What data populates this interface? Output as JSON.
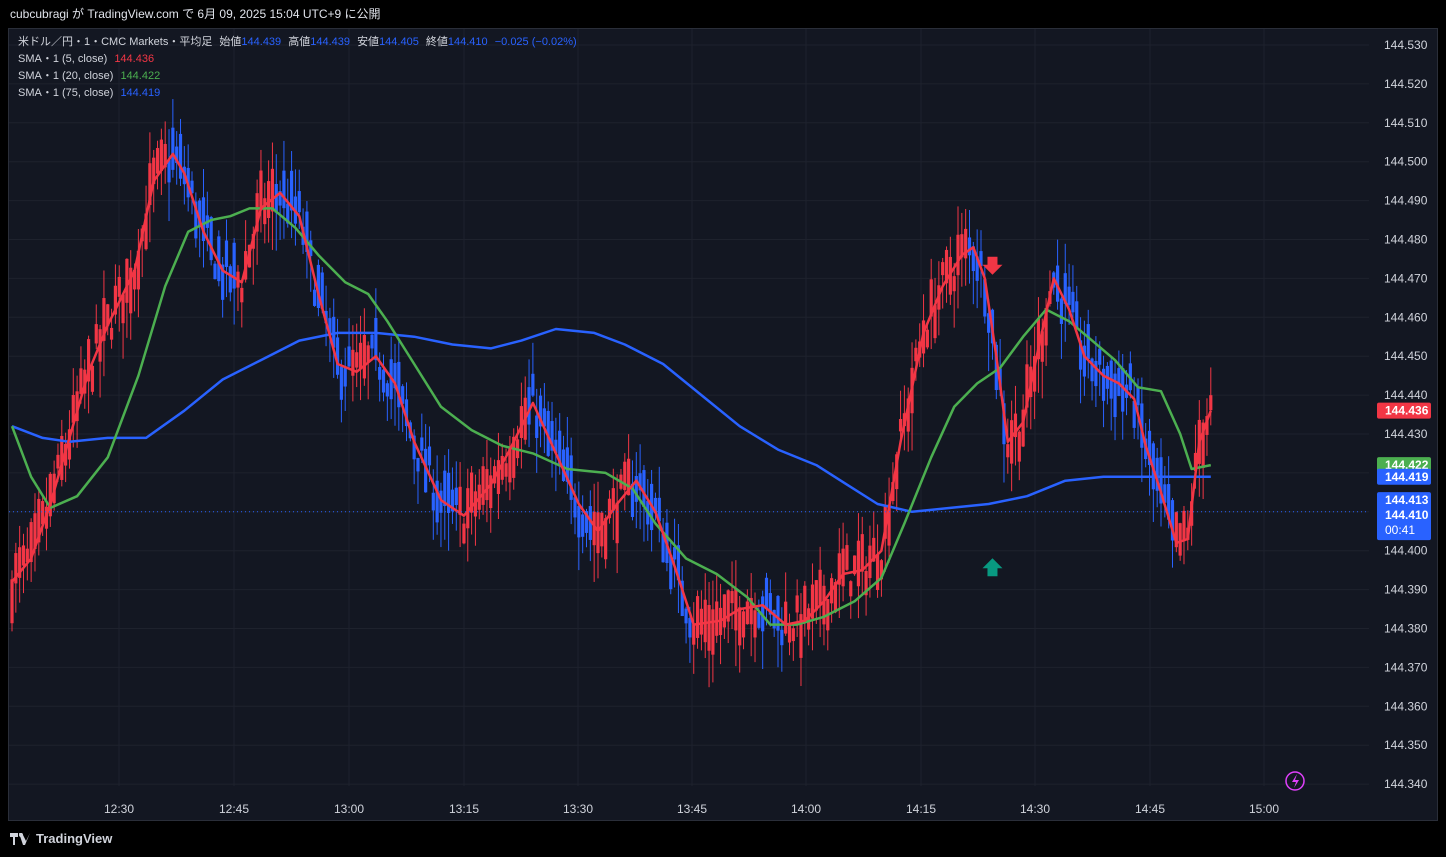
{
  "header": {
    "publish_line": "cubcubragi が TradingView.com で 6月 09, 2025 15:04 UTC+9 に公開"
  },
  "legend": {
    "symbol": "米ドル／円・1・CMC Markets・平均足",
    "open_label": "始値",
    "open": "144.439",
    "high_label": "高値",
    "high": "144.439",
    "low_label": "安値",
    "low": "144.405",
    "close_label": "終値",
    "close": "144.410",
    "change": "−0.025 (−0.02%)",
    "sma5": {
      "label": "SMA・1 (5, close)",
      "value": "144.436"
    },
    "sma20": {
      "label": "SMA・1 (20, close)",
      "value": "144.422"
    },
    "sma75": {
      "label": "SMA・1 (75, close)",
      "value": "144.419"
    }
  },
  "price_badges": {
    "sma5": "144.436",
    "sma20": "144.422",
    "sma75": "144.419",
    "last_high": "144.413",
    "last_close": "144.410",
    "countdown": "00:41"
  },
  "colors": {
    "background": "#131722",
    "up": "#f23645",
    "down": "#2962ff",
    "sma5": "#f23645",
    "sma20": "#4caf50",
    "sma75": "#2962ff",
    "up_arrow": "#089981",
    "down_arrow": "#f23645",
    "lightning": "#e040fb"
  },
  "footer": {
    "brand": "TradingView"
  },
  "chart_data": {
    "type": "candlestick",
    "subtype": "heikin-ashi",
    "interval": "1m",
    "ylim": [
      144.335,
      144.535
    ],
    "ytick_labels": [
      "144.530",
      "144.520",
      "144.510",
      "144.500",
      "144.490",
      "144.480",
      "144.470",
      "144.460",
      "144.450",
      "144.440",
      "144.430",
      "144.420",
      "144.410",
      "144.400",
      "144.390",
      "144.380",
      "144.370",
      "144.360",
      "144.350",
      "144.340"
    ],
    "xtick_labels": [
      "12:30",
      "12:45",
      "13:00",
      "13:15",
      "13:30",
      "13:45",
      "14:00",
      "14:15",
      "14:30",
      "14:45",
      "15:00"
    ],
    "grid": true,
    "sma5": [
      [
        0,
        144.392
      ],
      [
        5,
        144.398
      ],
      [
        10,
        144.412
      ],
      [
        20,
        144.446
      ],
      [
        25,
        144.458
      ],
      [
        32,
        144.472
      ],
      [
        37,
        144.495
      ],
      [
        42,
        144.502
      ],
      [
        45,
        144.497
      ],
      [
        50,
        144.482
      ],
      [
        55,
        144.472
      ],
      [
        60,
        144.469
      ],
      [
        65,
        144.488
      ],
      [
        70,
        144.492
      ],
      [
        75,
        144.486
      ],
      [
        80,
        144.466
      ],
      [
        85,
        144.448
      ],
      [
        90,
        144.446
      ],
      [
        95,
        144.45
      ],
      [
        100,
        144.443
      ],
      [
        105,
        144.428
      ],
      [
        112,
        144.413
      ],
      [
        118,
        144.409
      ],
      [
        125,
        144.417
      ],
      [
        130,
        144.426
      ],
      [
        136,
        144.438
      ],
      [
        142,
        144.425
      ],
      [
        148,
        144.412
      ],
      [
        153,
        144.405
      ],
      [
        158,
        144.412
      ],
      [
        163,
        144.418
      ],
      [
        168,
        144.41
      ],
      [
        173,
        144.396
      ],
      [
        178,
        144.381
      ],
      [
        185,
        144.382
      ],
      [
        190,
        144.385
      ],
      [
        196,
        144.386
      ],
      [
        202,
        144.381
      ],
      [
        207,
        144.382
      ],
      [
        212,
        144.387
      ],
      [
        217,
        144.394
      ],
      [
        222,
        144.395
      ],
      [
        227,
        144.4
      ],
      [
        232,
        144.428
      ],
      [
        238,
        144.456
      ],
      [
        243,
        144.468
      ],
      [
        248,
        144.476
      ],
      [
        251,
        144.478
      ],
      [
        254,
        144.47
      ],
      [
        257,
        144.45
      ],
      [
        260,
        144.428
      ],
      [
        264,
        144.433
      ],
      [
        268,
        144.452
      ],
      [
        272,
        144.47
      ],
      [
        276,
        144.462
      ],
      [
        280,
        144.45
      ],
      [
        285,
        144.445
      ],
      [
        289,
        144.443
      ],
      [
        293,
        144.439
      ],
      [
        296,
        144.427
      ],
      [
        300,
        144.415
      ],
      [
        304,
        144.402
      ],
      [
        307,
        144.403
      ],
      [
        310,
        144.428
      ],
      [
        313,
        144.436
      ]
    ],
    "sma20": [
      [
        0,
        144.432
      ],
      [
        5,
        144.419
      ],
      [
        10,
        144.411
      ],
      [
        17,
        144.414
      ],
      [
        25,
        144.424
      ],
      [
        33,
        144.445
      ],
      [
        40,
        144.468
      ],
      [
        46,
        144.482
      ],
      [
        52,
        144.485
      ],
      [
        57,
        144.486
      ],
      [
        62,
        144.488
      ],
      [
        68,
        144.488
      ],
      [
        74,
        144.483
      ],
      [
        80,
        144.476
      ],
      [
        87,
        144.469
      ],
      [
        93,
        144.466
      ],
      [
        98,
        144.459
      ],
      [
        105,
        144.448
      ],
      [
        112,
        144.437
      ],
      [
        120,
        144.431
      ],
      [
        128,
        144.427
      ],
      [
        136,
        144.425
      ],
      [
        145,
        144.421
      ],
      [
        155,
        144.42
      ],
      [
        162,
        144.416
      ],
      [
        168,
        144.407
      ],
      [
        176,
        144.398
      ],
      [
        184,
        144.394
      ],
      [
        192,
        144.388
      ],
      [
        198,
        144.381
      ],
      [
        205,
        144.381
      ],
      [
        212,
        144.383
      ],
      [
        220,
        144.387
      ],
      [
        227,
        144.393
      ],
      [
        233,
        144.407
      ],
      [
        240,
        144.424
      ],
      [
        246,
        144.437
      ],
      [
        252,
        144.443
      ],
      [
        258,
        144.447
      ],
      [
        264,
        144.455
      ],
      [
        270,
        144.462
      ],
      [
        276,
        144.459
      ],
      [
        282,
        144.454
      ],
      [
        288,
        144.449
      ],
      [
        294,
        144.442
      ],
      [
        300,
        144.441
      ],
      [
        305,
        144.43
      ],
      [
        308,
        144.421
      ],
      [
        313,
        144.422
      ]
    ],
    "sma75": [
      [
        0,
        144.432
      ],
      [
        8,
        144.429
      ],
      [
        15,
        144.428
      ],
      [
        25,
        144.429
      ],
      [
        35,
        144.429
      ],
      [
        45,
        144.436
      ],
      [
        55,
        144.444
      ],
      [
        65,
        144.449
      ],
      [
        75,
        144.454
      ],
      [
        85,
        144.456
      ],
      [
        95,
        144.456
      ],
      [
        105,
        144.455
      ],
      [
        115,
        144.453
      ],
      [
        125,
        144.452
      ],
      [
        133,
        144.454
      ],
      [
        142,
        144.457
      ],
      [
        152,
        144.456
      ],
      [
        160,
        144.453
      ],
      [
        170,
        144.448
      ],
      [
        180,
        144.44
      ],
      [
        190,
        144.432
      ],
      [
        200,
        144.426
      ],
      [
        210,
        144.422
      ],
      [
        218,
        144.417
      ],
      [
        226,
        144.412
      ],
      [
        235,
        144.41
      ],
      [
        245,
        144.411
      ],
      [
        255,
        144.412
      ],
      [
        265,
        144.414
      ],
      [
        275,
        144.418
      ],
      [
        285,
        144.419
      ],
      [
        295,
        144.419
      ],
      [
        305,
        144.419
      ],
      [
        313,
        144.419
      ]
    ],
    "signals": [
      {
        "type": "sell",
        "x": 256,
        "price": 144.473
      },
      {
        "type": "buy",
        "x": 256,
        "price": 144.396
      }
    ],
    "last_price": 144.41
  }
}
